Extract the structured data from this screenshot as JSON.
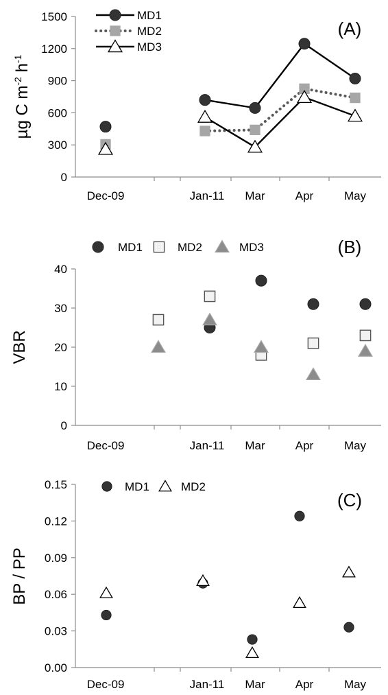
{
  "chart_data": [
    {
      "type": "line",
      "panel_label": "(A)",
      "ylabel_main": "µg C m",
      "ylabel_sup1": "-2",
      "ylabel_mid": " h",
      "ylabel_sup2": "-1",
      "yticks": [
        "0",
        "300",
        "600",
        "900",
        "1200",
        "1500"
      ],
      "ylim": [
        0,
        1500
      ],
      "x_categories": [
        "Dec-09",
        "Jan-11",
        "Mar",
        "Apr",
        "May"
      ],
      "legend_position": "top-left",
      "series": [
        {
          "name": "MD1",
          "marker": "circle",
          "line": "solid",
          "color": "#333333",
          "points": [
            {
              "x": "Dec-09",
              "y": 470
            },
            {
              "x": "Jan-11",
              "y": 720
            },
            {
              "x": "Mar",
              "y": 645
            },
            {
              "x": "Apr",
              "y": 1245
            },
            {
              "x": "May",
              "y": 920
            }
          ]
        },
        {
          "name": "MD2",
          "marker": "square",
          "line": "dotted",
          "color": "#a6a6a6",
          "points": [
            {
              "x": "Dec-09",
              "y": 305
            },
            {
              "x": "Jan-11",
              "y": 430
            },
            {
              "x": "Mar",
              "y": 440
            },
            {
              "x": "Apr",
              "y": 825
            },
            {
              "x": "May",
              "y": 740
            }
          ]
        },
        {
          "name": "MD3",
          "marker": "triangle-open",
          "line": "solid",
          "color": "#000000",
          "points": [
            {
              "x": "Dec-09",
              "y": 260
            },
            {
              "x": "Jan-11",
              "y": 560
            },
            {
              "x": "Mar",
              "y": 280
            },
            {
              "x": "Apr",
              "y": 745
            },
            {
              "x": "May",
              "y": 570
            }
          ]
        }
      ]
    },
    {
      "type": "scatter",
      "panel_label": "(B)",
      "ylabel": "VBR",
      "yticks": [
        "0",
        "10",
        "20",
        "30",
        "40"
      ],
      "ylim": [
        0,
        40
      ],
      "x_categories": [
        "Dec-09",
        "Jan-11",
        "Mar",
        "Apr",
        "May"
      ],
      "legend_position": "top",
      "series": [
        {
          "name": "MD1",
          "marker": "circle",
          "color": "#333333",
          "points": [
            {
              "x": "Jan-11",
              "y": 25
            },
            {
              "x": "Mar",
              "y": 37
            },
            {
              "x": "Apr",
              "y": 31
            },
            {
              "x": "May",
              "y": 31
            }
          ]
        },
        {
          "name": "MD2",
          "marker": "square-open",
          "color": "#555555",
          "points": [
            {
              "x": "Dec-09",
              "y": 27
            },
            {
              "x": "Jan-11",
              "y": 33
            },
            {
              "x": "Mar",
              "y": 18
            },
            {
              "x": "Apr",
              "y": 21
            },
            {
              "x": "May",
              "y": 23
            }
          ]
        },
        {
          "name": "MD3",
          "marker": "triangle",
          "color": "#8c8c8c",
          "points": [
            {
              "x": "Dec-09",
              "y": 20
            },
            {
              "x": "Jan-11",
              "y": 27
            },
            {
              "x": "Mar",
              "y": 20
            },
            {
              "x": "Apr",
              "y": 13
            },
            {
              "x": "May",
              "y": 19
            }
          ]
        }
      ]
    },
    {
      "type": "scatter",
      "panel_label": "(C)",
      "ylabel": "BP / PP",
      "yticks": [
        "0.00",
        "0.03",
        "0.06",
        "0.09",
        "0.12",
        "0.15"
      ],
      "ylim": [
        0,
        0.15
      ],
      "x_categories": [
        "Dec-09",
        "Jan-11",
        "Mar",
        "Apr",
        "May"
      ],
      "legend_position": "top-left",
      "series": [
        {
          "name": "MD1",
          "marker": "circle",
          "color": "#333333",
          "points": [
            {
              "x": "Dec-09",
              "y": 0.043
            },
            {
              "x": "Jan-11",
              "y": 0.069
            },
            {
              "x": "Mar",
              "y": 0.023
            },
            {
              "x": "Apr",
              "y": 0.124
            },
            {
              "x": "May",
              "y": 0.033
            }
          ]
        },
        {
          "name": "MD2",
          "marker": "triangle-open",
          "color": "#000000",
          "points": [
            {
              "x": "Dec-09",
              "y": 0.061
            },
            {
              "x": "Jan-11",
              "y": 0.071
            },
            {
              "x": "Mar",
              "y": 0.012
            },
            {
              "x": "Apr",
              "y": 0.053
            },
            {
              "x": "May",
              "y": 0.078
            }
          ]
        }
      ]
    }
  ]
}
